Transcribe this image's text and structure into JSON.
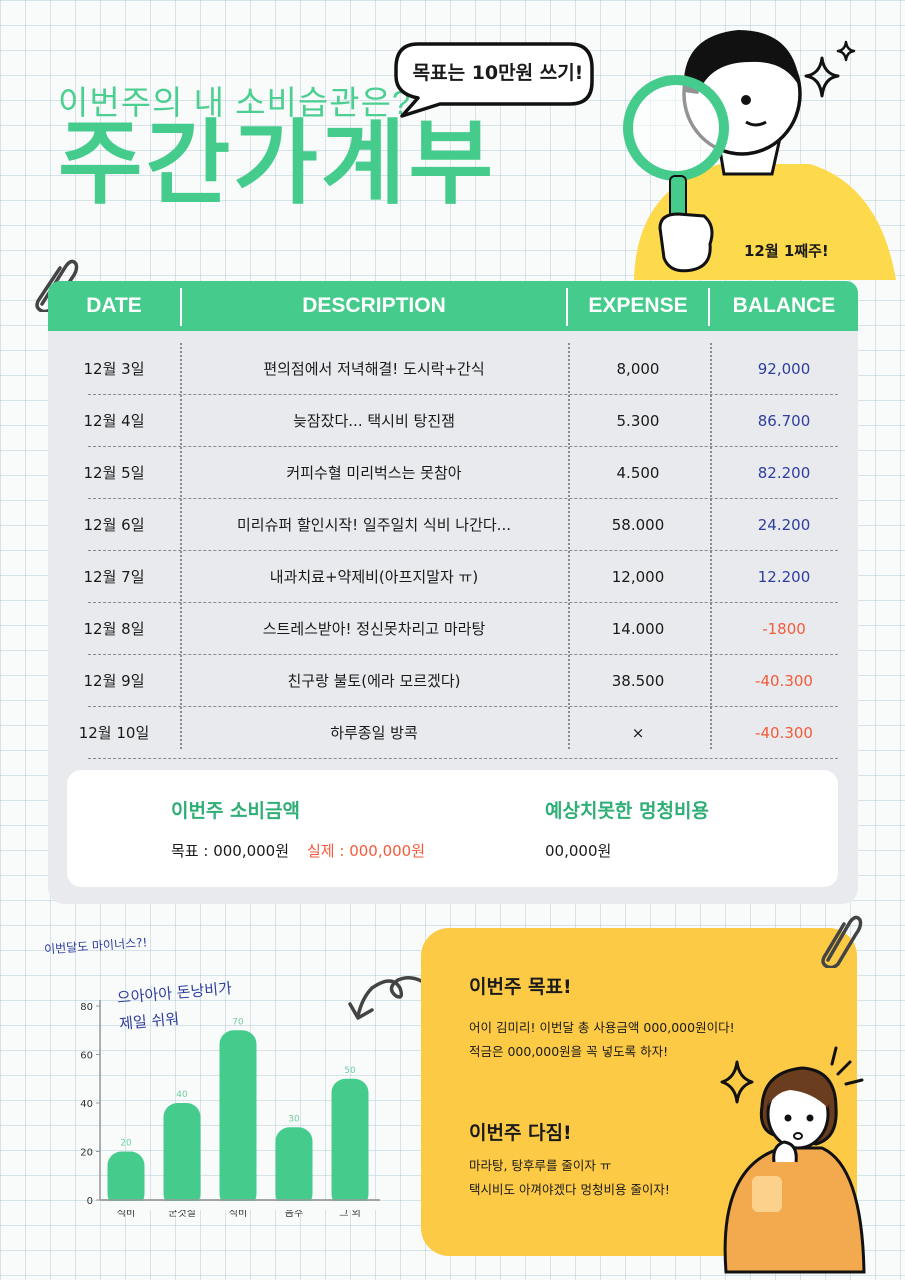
{
  "header": {
    "subtitle": "이번주의 내 소비습관은?",
    "title": "주간가계부",
    "bubble": "목표는 10만원 쓰기!",
    "week_tag": "12월 1째주!"
  },
  "colors": {
    "accent_green": "#45cc8c",
    "balance_positive": "#2f3e9e",
    "balance_negative": "#f25b3a",
    "panel_yellow": "#fdca46"
  },
  "table": {
    "headers": {
      "date": "DATE",
      "description": "DESCRIPTION",
      "expense": "EXPENSE",
      "balance": "BALANCE"
    },
    "rows": [
      {
        "date": "12월 3일",
        "description": "편의점에서 저녁해결! 도시락+간식",
        "expense": "8,000",
        "balance": "92,000"
      },
      {
        "date": "12월 4일",
        "description": "늦잠잤다... 택시비 탕진잼",
        "expense": "5.300",
        "balance": "86.700"
      },
      {
        "date": "12월 5일",
        "description": "커피수혈 미리벅스는 못참아",
        "expense": "4.500",
        "balance": "82.200"
      },
      {
        "date": "12월 6일",
        "description": "미리슈퍼 할인시작! 일주일치 식비 나간다...",
        "expense": "58.000",
        "balance": "24.200"
      },
      {
        "date": "12월 7일",
        "description": "내과치료+약제비(아프지말자 ㅠ)",
        "expense": "12,000",
        "balance": "12.200"
      },
      {
        "date": "12월 8일",
        "description": "스트레스받아! 정신못차리고 마라탕",
        "expense": "14.000",
        "balance": "-1800"
      },
      {
        "date": "12월 9일",
        "description": "친구랑 불토(에라 모르겠다)",
        "expense": "38.500",
        "balance": "-40.300"
      },
      {
        "date": "12월 10일",
        "description": "하루종일 방콕",
        "expense": "×",
        "balance": "-40.300"
      }
    ]
  },
  "summary": {
    "weekly_label": "이번주 소비금액",
    "goal_text": "목표 : 000,000원",
    "actual_text": "실제 : 000,000원",
    "unexpected_label": "예상치못한 멍청비용",
    "unexpected_value": "00,000원"
  },
  "chart_note": "이번달도 마이너스?!",
  "chart_comment": [
    "으아아아 돈낭비가",
    "제일 쉬워"
  ],
  "chart_data": {
    "type": "bar",
    "categories": [
      "식비",
      "군것질",
      "식비",
      "음주",
      "그 외"
    ],
    "values": [
      20,
      40,
      70,
      30,
      50
    ],
    "ylim": [
      0,
      80
    ],
    "yticks": [
      0,
      20,
      40,
      60,
      80
    ],
    "grid": false
  },
  "goals": {
    "goal_title": "이번주 목표!",
    "goal_lines": [
      "어이 김미리! 이번달 총 사용금액 000,000원이다!",
      "적금은 000,000원을 꼭 넣도록 하자!"
    ],
    "resolve_title": "이번주 다짐!",
    "resolve_lines": [
      "마라탕, 탕후루를 줄이자 ㅠ",
      "택시비도 아껴야겠다 멍청비용 줄이자!"
    ]
  }
}
